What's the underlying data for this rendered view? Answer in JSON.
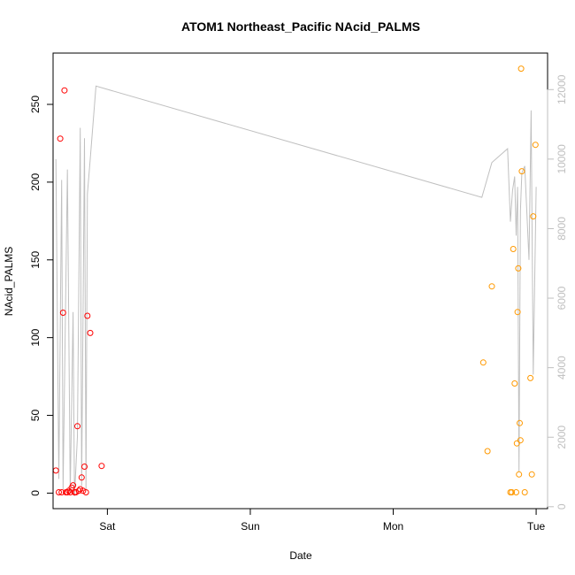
{
  "chart_data": {
    "type": "scatter",
    "title": "ATOM1 Northeast_Pacific NAcid_PALMS",
    "xlabel": "Date",
    "ylabel": "NAcid_PALMS",
    "x_ticks": [
      {
        "label": "Sat",
        "x": 0.0
      },
      {
        "label": "Sun",
        "x": 1.0
      },
      {
        "label": "Mon",
        "x": 2.0
      },
      {
        "label": "Tue",
        "x": 3.0
      }
    ],
    "xlim": [
      -0.38,
      3.08
    ],
    "ylim": [
      -10,
      283
    ],
    "y_ticks": [
      0,
      50,
      100,
      150,
      200,
      250
    ],
    "y2lim": [
      -55,
      13050
    ],
    "y2_ticks": [
      0,
      2000,
      4000,
      6000,
      8000,
      10000,
      12000
    ],
    "colors": {
      "series_1": "#ff0000",
      "series_2": "#ff9900",
      "line": "#c0c0c0",
      "right_axis": "#bfbfbf"
    },
    "series": [
      {
        "color": "red",
        "points": [
          [
            -0.36,
            14.5
          ],
          [
            -0.34,
            0.5
          ],
          [
            -0.33,
            228
          ],
          [
            -0.32,
            0.5
          ],
          [
            -0.31,
            116
          ],
          [
            -0.3,
            259
          ],
          [
            -0.29,
            0.5
          ],
          [
            -0.28,
            0.5
          ],
          [
            -0.27,
            1.5
          ],
          [
            -0.26,
            0.5
          ],
          [
            -0.25,
            3.5
          ],
          [
            -0.24,
            5
          ],
          [
            -0.23,
            0.5
          ],
          [
            -0.22,
            0.5
          ],
          [
            -0.21,
            43
          ],
          [
            -0.2,
            1.5
          ],
          [
            -0.19,
            2.5
          ],
          [
            -0.18,
            10
          ],
          [
            -0.17,
            1.5
          ],
          [
            -0.16,
            17
          ],
          [
            -0.15,
            0.5
          ],
          [
            -0.14,
            114
          ],
          [
            -0.12,
            103
          ],
          [
            -0.04,
            17.5
          ]
        ]
      },
      {
        "color": "orange",
        "points": [
          [
            2.63,
            84
          ],
          [
            2.66,
            27
          ],
          [
            2.69,
            133
          ],
          [
            2.82,
            0.5
          ],
          [
            2.83,
            0.5
          ],
          [
            2.84,
            157
          ],
          [
            2.85,
            70.5
          ],
          [
            2.86,
            0.5
          ],
          [
            2.865,
            32
          ],
          [
            2.87,
            116.5
          ],
          [
            2.875,
            144.5
          ],
          [
            2.88,
            12
          ],
          [
            2.885,
            45
          ],
          [
            2.89,
            34
          ],
          [
            2.895,
            273
          ],
          [
            2.9,
            207
          ],
          [
            2.92,
            0.5
          ],
          [
            2.96,
            74
          ],
          [
            2.97,
            12
          ],
          [
            2.98,
            178
          ],
          [
            2.995,
            224
          ]
        ]
      }
    ],
    "line_series": {
      "color": "gray",
      "axis": "right",
      "points": [
        [
          -0.36,
          10000
        ],
        [
          -0.34,
          800
        ],
        [
          -0.32,
          9400
        ],
        [
          -0.31,
          500
        ],
        [
          -0.28,
          9700
        ],
        [
          -0.26,
          400
        ],
        [
          -0.24,
          5600
        ],
        [
          -0.23,
          300
        ],
        [
          -0.21,
          2000
        ],
        [
          -0.19,
          10900
        ],
        [
          -0.18,
          600
        ],
        [
          -0.16,
          10600
        ],
        [
          -0.15,
          500
        ],
        [
          -0.14,
          9000
        ],
        [
          -0.12,
          10000
        ],
        [
          -0.08,
          12100
        ],
        [
          2.62,
          8900
        ],
        [
          2.69,
          9900
        ],
        [
          2.8,
          10300
        ],
        [
          2.82,
          8200
        ],
        [
          2.835,
          9100
        ],
        [
          2.85,
          9500
        ],
        [
          2.86,
          7800
        ],
        [
          2.87,
          9200
        ],
        [
          2.88,
          1000
        ],
        [
          2.89,
          8500
        ],
        [
          2.9,
          9600
        ],
        [
          2.92,
          9800
        ],
        [
          2.95,
          7100
        ],
        [
          2.965,
          11400
        ],
        [
          2.98,
          3800
        ],
        [
          3.0,
          9200
        ]
      ]
    }
  }
}
